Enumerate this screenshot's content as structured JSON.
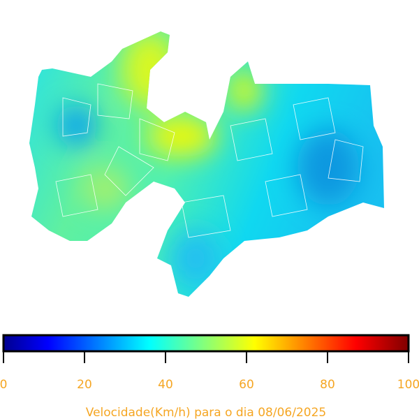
{
  "colorbar": {
    "label": "Velocidade(Km/h) para o dia 08/06/2025",
    "range": [
      0,
      100
    ],
    "ticks": [
      0,
      20,
      40,
      60,
      80,
      100
    ]
  }
}
